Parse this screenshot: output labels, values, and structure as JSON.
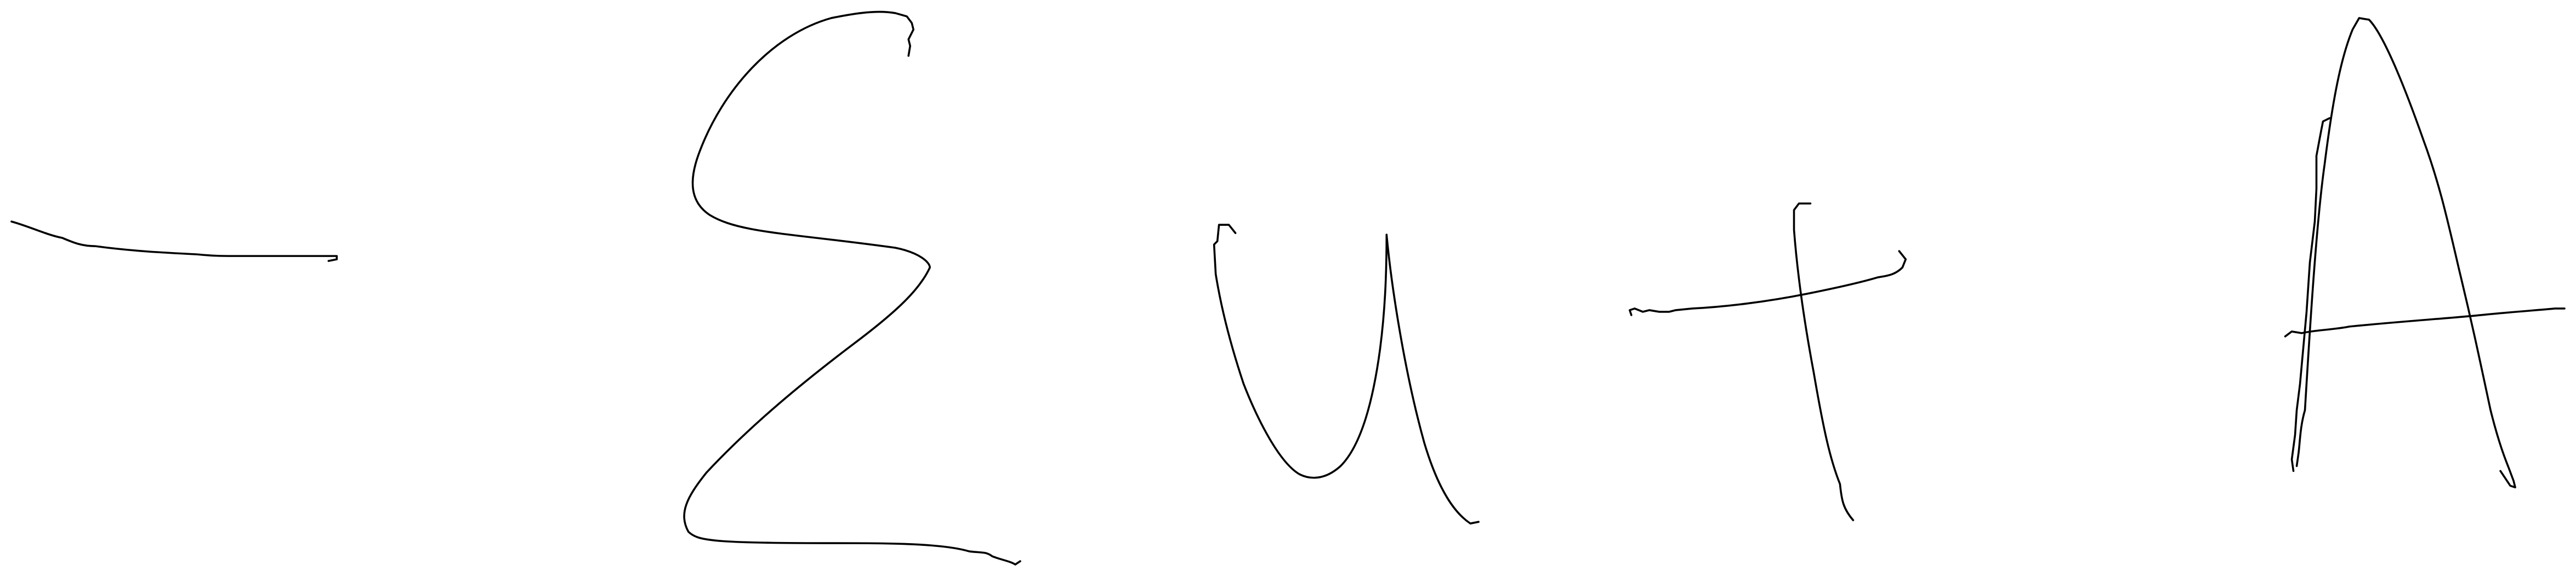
{
  "handwriting": {
    "expression_symbols": [
      "-",
      "Σ",
      "u",
      "+",
      "A"
    ],
    "ink_color": "#000000",
    "background_color": "#ffffff"
  }
}
